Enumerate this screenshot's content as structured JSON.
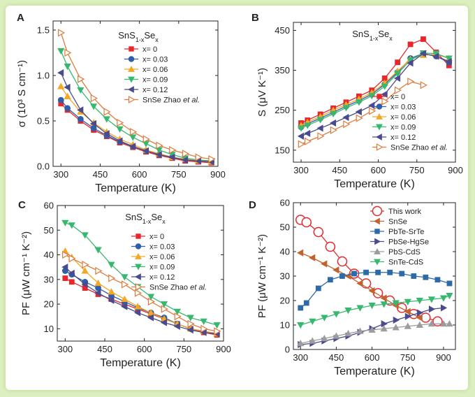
{
  "chart_data": [
    {
      "panel": "A",
      "type": "line",
      "title": "SnS1-xSex",
      "xlabel": "Temperature (K)",
      "ylabel": "σ (10³ S cm⁻¹)",
      "xlim": [
        270,
        900
      ],
      "ylim": [
        0,
        1.6
      ],
      "xticks": [
        300,
        450,
        600,
        750,
        900
      ],
      "yticks": [
        0.0,
        0.5,
        1.0,
        1.5
      ],
      "xtick_labels": [
        "300",
        "450",
        "600",
        "750",
        "900"
      ],
      "ytick_labels": [
        "0.0",
        "0.5",
        "1.0",
        "1.5"
      ],
      "legend_position": "upper-right",
      "series": [
        {
          "name": "x= 0",
          "color": "#e8262b",
          "marker": "square",
          "x": [
            300,
            325,
            375,
            425,
            475,
            525,
            575,
            625,
            675,
            725,
            775,
            825,
            875
          ],
          "y": [
            0.69,
            0.62,
            0.5,
            0.4,
            0.33,
            0.26,
            0.21,
            0.16,
            0.12,
            0.09,
            0.06,
            0.05,
            0.04
          ]
        },
        {
          "name": "x= 0.03",
          "color": "#2e5fa8",
          "marker": "circle",
          "x": [
            300,
            325,
            375,
            425,
            475,
            525,
            575,
            625,
            675,
            725,
            775,
            825,
            875
          ],
          "y": [
            0.73,
            0.64,
            0.52,
            0.42,
            0.34,
            0.27,
            0.22,
            0.17,
            0.13,
            0.1,
            0.07,
            0.06,
            0.05
          ]
        },
        {
          "name": "x= 0.06",
          "color": "#f5a623",
          "marker": "triangle-up",
          "x": [
            300,
            325,
            375,
            425,
            475,
            525,
            575,
            625,
            675,
            725,
            775,
            825,
            875
          ],
          "y": [
            0.88,
            0.77,
            0.6,
            0.48,
            0.38,
            0.3,
            0.24,
            0.18,
            0.14,
            0.1,
            0.08,
            0.06,
            0.05
          ]
        },
        {
          "name": "x= 0.09",
          "color": "#37b86e",
          "marker": "triangle-down",
          "x": [
            300,
            325,
            375,
            425,
            475,
            525,
            575,
            625,
            675,
            725,
            775,
            825,
            875
          ],
          "y": [
            1.27,
            1.1,
            0.84,
            0.66,
            0.52,
            0.41,
            0.32,
            0.25,
            0.18,
            0.13,
            0.09,
            0.07,
            0.06
          ]
        },
        {
          "name": "x= 0.12",
          "color": "#4a4a8e",
          "marker": "triangle-left",
          "x": [
            300,
            325,
            375,
            425,
            475,
            525,
            575,
            625,
            675,
            725,
            775,
            825,
            875
          ],
          "y": [
            1.03,
            0.87,
            0.62,
            0.47,
            0.36,
            0.28,
            0.22,
            0.17,
            0.13,
            0.1,
            0.07,
            0.06,
            0.05
          ]
        },
        {
          "name": "SnSe  Zhao et al.",
          "color": "#e07a3c",
          "marker": "triangle-right-open",
          "x": [
            300,
            325,
            375,
            425,
            475,
            525,
            575,
            625,
            675,
            725,
            775,
            825,
            875
          ],
          "y": [
            1.47,
            1.25,
            0.96,
            0.75,
            0.6,
            0.48,
            0.38,
            0.3,
            0.23,
            0.18,
            0.14,
            0.1,
            0.08
          ]
        }
      ]
    },
    {
      "panel": "B",
      "type": "line",
      "title": "SnS1-xSex",
      "xlabel": "Temperature (K)",
      "ylabel": "S (μV K⁻¹)",
      "xlim": [
        270,
        900
      ],
      "ylim": [
        120,
        470
      ],
      "xticks": [
        300,
        450,
        600,
        750,
        900
      ],
      "yticks": [
        150,
        250,
        350,
        450
      ],
      "xtick_labels": [
        "300",
        "450",
        "600",
        "750",
        "900"
      ],
      "ytick_labels": [
        "150",
        "250",
        "350",
        "450"
      ],
      "legend_position": "lower-right",
      "series": [
        {
          "name": "x= 0",
          "color": "#e8262b",
          "marker": "square",
          "x": [
            300,
            325,
            375,
            425,
            475,
            525,
            575,
            625,
            675,
            725,
            775,
            825,
            875
          ],
          "y": [
            218,
            225,
            240,
            255,
            270,
            285,
            300,
            330,
            370,
            415,
            428,
            395,
            362
          ]
        },
        {
          "name": "x= 0.03",
          "color": "#2e5fa8",
          "marker": "circle",
          "x": [
            300,
            325,
            375,
            425,
            475,
            525,
            575,
            625,
            675,
            725,
            775,
            825,
            875
          ],
          "y": [
            208,
            216,
            230,
            245,
            260,
            274,
            290,
            315,
            345,
            380,
            392,
            385,
            370
          ]
        },
        {
          "name": "x= 0.06",
          "color": "#f5a623",
          "marker": "triangle-up",
          "x": [
            300,
            325,
            375,
            425,
            475,
            525,
            575,
            625,
            675,
            725,
            775,
            825,
            875
          ],
          "y": [
            212,
            220,
            234,
            250,
            264,
            278,
            294,
            318,
            348,
            378,
            388,
            390,
            380
          ]
        },
        {
          "name": "x= 0.09",
          "color": "#37b86e",
          "marker": "triangle-down",
          "x": [
            300,
            325,
            375,
            425,
            475,
            525,
            575,
            625,
            675,
            725,
            775,
            825,
            875
          ],
          "y": [
            205,
            212,
            226,
            241,
            256,
            270,
            286,
            310,
            342,
            375,
            393,
            392,
            380
          ]
        },
        {
          "name": "x= 0.12",
          "color": "#4a4a8e",
          "marker": "triangle-left",
          "x": [
            300,
            325,
            375,
            425,
            475,
            525,
            575,
            625,
            675,
            725,
            775,
            825,
            875
          ],
          "y": [
            185,
            192,
            205,
            218,
            232,
            246,
            262,
            290,
            330,
            368,
            392,
            385,
            372
          ]
        },
        {
          "name": "SnSe Zhao et al.",
          "color": "#e07a3c",
          "marker": "triangle-right-open",
          "x": [
            300,
            325,
            375,
            425,
            475,
            525,
            575,
            625,
            675,
            725,
            775
          ],
          "y": [
            165,
            172,
            185,
            200,
            215,
            230,
            248,
            272,
            300,
            322,
            313
          ]
        }
      ]
    },
    {
      "panel": "C",
      "type": "line",
      "title": "SnS1-xSex",
      "xlabel": "Temperature (K)",
      "ylabel": "PF (μW cm⁻¹ K⁻²)",
      "xlim": [
        270,
        900
      ],
      "ylim": [
        5,
        60
      ],
      "xticks": [
        300,
        450,
        600,
        750,
        900
      ],
      "yticks": [
        10,
        20,
        30,
        40,
        50,
        60
      ],
      "xtick_labels": [
        "300",
        "450",
        "600",
        "750",
        "900"
      ],
      "ytick_labels": [
        "10",
        "20",
        "30",
        "40",
        "50",
        "60"
      ],
      "legend_position": "upper-right",
      "series": [
        {
          "name": "x= 0",
          "color": "#e8262b",
          "marker": "square",
          "x": [
            300,
            325,
            375,
            425,
            475,
            525,
            575,
            625,
            675,
            725,
            775,
            825,
            875
          ],
          "y": [
            30.5,
            29,
            26.5,
            24,
            22,
            20,
            18,
            16,
            14,
            12,
            10,
            8.5,
            7.5
          ]
        },
        {
          "name": "x= 0.03",
          "color": "#2e5fa8",
          "marker": "circle",
          "x": [
            300,
            325,
            375,
            425,
            475,
            525,
            575,
            625,
            675,
            725,
            775,
            825,
            875
          ],
          "y": [
            33.5,
            32,
            29,
            26.5,
            23.5,
            21,
            18.5,
            16.5,
            14.5,
            12,
            10,
            9,
            8
          ]
        },
        {
          "name": "x= 0.06",
          "color": "#f5a623",
          "marker": "triangle-up",
          "x": [
            300,
            325,
            375,
            425,
            475,
            525,
            575,
            625,
            675,
            725,
            775,
            825,
            875
          ],
          "y": [
            41.5,
            39,
            33.5,
            28.5,
            25,
            22,
            19,
            16.5,
            14,
            12,
            10,
            9,
            8
          ]
        },
        {
          "name": "x= 0.09",
          "color": "#37b86e",
          "marker": "triangle-down",
          "x": [
            300,
            325,
            375,
            425,
            475,
            525,
            575,
            625,
            675,
            725,
            775,
            825,
            875
          ],
          "y": [
            53,
            52,
            48,
            42,
            36,
            31,
            27,
            23,
            20,
            17,
            14.5,
            13,
            11.5
          ]
        },
        {
          "name": "x= 0.12",
          "color": "#4a4a8e",
          "marker": "triangle-left",
          "x": [
            300,
            325,
            375,
            425,
            475,
            525,
            575,
            625,
            675,
            725,
            775,
            825,
            875
          ],
          "y": [
            35,
            32.5,
            28,
            24.5,
            21.5,
            19,
            16.5,
            14.5,
            12.5,
            11,
            9.5,
            8.5,
            8
          ]
        },
        {
          "name": "SnSe Zhao et al.",
          "color": "#e07a3c",
          "marker": "triangle-right-open",
          "x": [
            300,
            325,
            375,
            425,
            475,
            525,
            575,
            625,
            675,
            725,
            775,
            825,
            875
          ],
          "y": [
            40,
            38.5,
            36,
            33.5,
            30.5,
            28,
            24.5,
            21,
            18,
            15,
            12,
            10,
            9
          ]
        }
      ]
    },
    {
      "panel": "D",
      "type": "line",
      "title": "",
      "xlabel": "Temperature (K)",
      "ylabel": "PF (μW cm⁻¹ K⁻²)",
      "xlim": [
        270,
        950
      ],
      "ylim": [
        0,
        60
      ],
      "xticks": [
        300,
        450,
        600,
        750,
        900
      ],
      "yticks": [
        0,
        10,
        20,
        30,
        40,
        50,
        60
      ],
      "xtick_labels": [
        "300",
        "450",
        "600",
        "750",
        "900"
      ],
      "ytick_labels": [
        "0",
        "10",
        "20",
        "30",
        "40",
        "50",
        "60"
      ],
      "legend_position": "upper-right",
      "series": [
        {
          "name": "This work",
          "color": "#e8262b",
          "marker": "circle-open-large",
          "x": [
            300,
            325,
            375,
            425,
            475,
            525,
            575,
            625,
            675,
            725,
            775,
            825,
            875
          ],
          "y": [
            53,
            52,
            48,
            42,
            36,
            31,
            27,
            23,
            20,
            17,
            14.5,
            13,
            11.5
          ]
        },
        {
          "name": "SnSe",
          "color": "#c0632f",
          "marker": "triangle-left",
          "x": [
            300,
            350,
            400,
            450,
            500,
            550,
            600,
            650,
            700,
            750,
            800
          ],
          "y": [
            39.5,
            37.5,
            35,
            32.5,
            30,
            27,
            24,
            21,
            18,
            15.5,
            13
          ]
        },
        {
          "name": "PbTe-SrTe",
          "color": "#2e6aa8",
          "marker": "square",
          "x": [
            300,
            325,
            375,
            425,
            475,
            525,
            575,
            625,
            675,
            725,
            775,
            825,
            875,
            925
          ],
          "y": [
            17,
            19,
            25,
            28.5,
            30,
            31,
            31.5,
            31.5,
            31.5,
            31,
            30,
            29.5,
            28.5,
            27
          ]
        },
        {
          "name": "PbSe-HgSe",
          "color": "#4a4a8e",
          "marker": "triangle-right",
          "x": [
            300,
            350,
            400,
            450,
            500,
            550,
            600,
            650,
            700,
            750,
            800,
            850,
            900
          ],
          "y": [
            2,
            2.5,
            3.5,
            4.5,
            5.5,
            7,
            8.5,
            10.5,
            12,
            13.5,
            15,
            16.5,
            17
          ]
        },
        {
          "name": "PbS-CdS",
          "color": "#9c9c9c",
          "marker": "triangle-up",
          "x": [
            300,
            350,
            400,
            450,
            500,
            550,
            600,
            650,
            700,
            750,
            800,
            850,
            900,
            925
          ],
          "y": [
            2.5,
            3.5,
            4.5,
            5.5,
            6.5,
            7.5,
            8,
            8.5,
            9,
            9.5,
            10,
            10.5,
            10.5,
            10.5
          ]
        },
        {
          "name": "SnTe-CdS",
          "color": "#37b86e",
          "marker": "triangle-down",
          "x": [
            300,
            350,
            400,
            450,
            500,
            550,
            600,
            650,
            700,
            750,
            800,
            850,
            900,
            925
          ],
          "y": [
            10,
            11.5,
            13,
            14.5,
            16,
            17,
            18,
            18.5,
            19,
            19.5,
            20,
            20.5,
            21,
            22
          ]
        }
      ]
    }
  ]
}
